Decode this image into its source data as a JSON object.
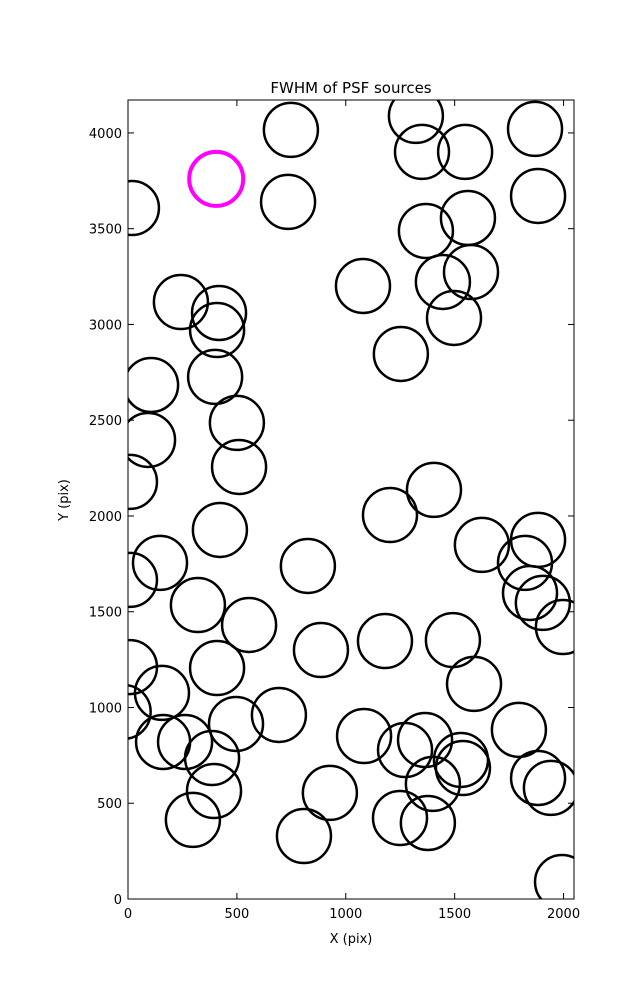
{
  "chart_data": {
    "type": "scatter",
    "title": "FWHM of PSF sources",
    "xlabel": "X (pix)",
    "ylabel": "Y (pix)",
    "xlim": [
      0,
      2048
    ],
    "ylim": [
      0,
      4172
    ],
    "xticks": [
      0,
      500,
      1000,
      1500,
      2000
    ],
    "yticks": [
      0,
      500,
      1000,
      1500,
      2000,
      2500,
      3000,
      3500,
      4000
    ],
    "series": [
      {
        "color": "#000000",
        "x": [
          748,
          1322,
          1350,
          1548,
          1869,
          1883,
          18,
          735,
          1368,
          1561,
          1079,
          1446,
          1575,
          1497,
          243,
          418,
          409,
          1253,
          106,
          400,
          500,
          92,
          510,
          9,
          1405,
          1203,
          422,
          1883,
          1625,
          1823,
          826,
          147,
          9,
          1846,
          1905,
          1997,
          321,
          556,
          1180,
          1492,
          886,
          9,
          409,
          156,
          1589,
          -20,
          693,
          496,
          161,
          262,
          386,
          1084,
          1272,
          1364,
          1795,
          1529,
          1538,
          1400,
          1883,
          1942,
          395,
          927,
          1249,
          1377,
          298,
          808,
          1993
        ],
        "y": [
          4016,
          4089,
          3901,
          3901,
          4021,
          3671,
          3608,
          3640,
          3488,
          3556,
          3201,
          3222,
          3274,
          3034,
          3117,
          3060,
          2971,
          2846,
          2684,
          2726,
          2486,
          2397,
          2256,
          2178,
          2136,
          2005,
          1927,
          1875,
          1849,
          1755,
          1739,
          1755,
          1666,
          1598,
          1546,
          1420,
          1535,
          1431,
          1347,
          1352,
          1300,
          1211,
          1206,
          1076,
          1123,
          977,
          961,
          914,
          820,
          820,
          736,
          851,
          778,
          830,
          883,
          726,
          684,
          601,
          632,
          580,
          564,
          554,
          423,
          397,
          413,
          329,
          89
        ]
      },
      {
        "color": "#ff00ff",
        "x": [
          405
        ],
        "y": [
          3760
        ]
      }
    ]
  }
}
